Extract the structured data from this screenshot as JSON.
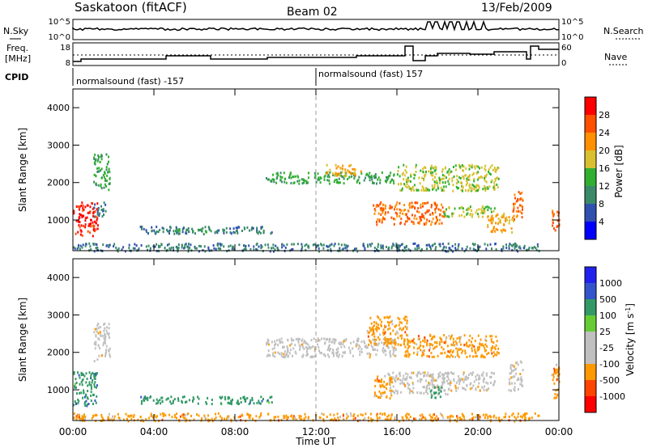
{
  "header": {
    "station": "Saskatoon (fitACF)",
    "beam": "Beam 02",
    "date": "13/Feb/2009"
  },
  "side_labels": {
    "nsky": "N.Sky",
    "freq": "Freq.",
    "freq_unit": "[MHz]",
    "cpid": "CPID",
    "nsearch": "N.Search",
    "nave": "Nave"
  },
  "cpid_labels": [
    "normalsound (fast) -157",
    "normalsound (fast) 157"
  ],
  "top_panel": {
    "left_ticks": [
      "10^5",
      "10^0"
    ],
    "right_ticks": [
      "10^5",
      "10^0"
    ]
  },
  "freq_panel": {
    "left_ticks": [
      "18",
      "8"
    ],
    "right_ticks": [
      "60",
      "0"
    ]
  },
  "time_axis": {
    "label": "Time UT",
    "ticks": [
      "00:00",
      "04:00",
      "08:00",
      "12:00",
      "16:00",
      "20:00",
      "00:00"
    ]
  },
  "colors": {
    "power": [
      "#0000ff",
      "#3050b0",
      "#3a8a6a",
      "#30b030",
      "#d8c030",
      "#ff9000",
      "#ff5000",
      "#ff0000"
    ],
    "velocity": [
      "#ff0000",
      "#ff4400",
      "#ff9900",
      "#c0c0c0",
      "#c0c0c0",
      "#66cc33",
      "#339966",
      "#3355cc",
      "#2222ee"
    ]
  },
  "chart_data": [
    {
      "type": "heatmap",
      "name": "power",
      "ylabel": "Slant Range [km]",
      "yticks": [
        "1000",
        "2000",
        "3000",
        "4000"
      ],
      "ylim": [
        180,
        4500
      ],
      "xlim": [
        0,
        24
      ],
      "colorbar": {
        "label": "Power [dB]",
        "ticks": [
          "4",
          "8",
          "12",
          "16",
          "20",
          "24",
          "28"
        ],
        "range": [
          0,
          32
        ]
      },
      "regions": [
        {
          "t": [
            0.0,
            1.2
          ],
          "r": [
            600,
            1500
          ],
          "v": 28
        },
        {
          "t": [
            1.0,
            1.8
          ],
          "r": [
            1800,
            2800
          ],
          "v": 14
        },
        {
          "t": [
            1.0,
            1.6
          ],
          "r": [
            1100,
            1500
          ],
          "v": 10
        },
        {
          "t": [
            3.3,
            9.8
          ],
          "r": [
            650,
            850
          ],
          "v": 8
        },
        {
          "t": [
            5.0,
            7.0
          ],
          "r": [
            700,
            800
          ],
          "v": 12
        },
        {
          "t": [
            9.5,
            16.0
          ],
          "r": [
            2000,
            2300
          ],
          "v": 14
        },
        {
          "t": [
            12.5,
            14.2
          ],
          "r": [
            2200,
            2500
          ],
          "v": 20
        },
        {
          "t": [
            14.8,
            18.3
          ],
          "r": [
            900,
            1500
          ],
          "v": 26
        },
        {
          "t": [
            16.0,
            21.0
          ],
          "r": [
            1800,
            2500
          ],
          "v": 16
        },
        {
          "t": [
            18.3,
            20.8
          ],
          "r": [
            1100,
            1400
          ],
          "v": 18
        },
        {
          "t": [
            20.4,
            21.8
          ],
          "r": [
            700,
            1200
          ],
          "v": 22
        },
        {
          "t": [
            21.7,
            22.2
          ],
          "r": [
            1000,
            1800
          ],
          "v": 26
        },
        {
          "t": [
            23.6,
            24.0
          ],
          "r": [
            700,
            1300
          ],
          "v": 26
        },
        {
          "t": [
            0.0,
            23.0
          ],
          "r": [
            190,
            400
          ],
          "v": 10
        }
      ]
    },
    {
      "type": "heatmap",
      "name": "velocity",
      "ylabel": "Slant Range [km]",
      "yticks": [
        "1000",
        "2000",
        "3000",
        "4000"
      ],
      "ylim": [
        180,
        4500
      ],
      "xlim": [
        0,
        24
      ],
      "colorbar": {
        "label": "Velocity [m s^-1]",
        "ticks": [
          "1000",
          "500",
          "100",
          "25",
          "-25",
          "-100",
          "-500",
          "-1000"
        ]
      },
      "regions": [
        {
          "t": [
            0.0,
            1.2
          ],
          "r": [
            600,
            1500
          ],
          "v": 150
        },
        {
          "t": [
            1.0,
            1.8
          ],
          "r": [
            1800,
            2800
          ],
          "v": 0
        },
        {
          "t": [
            3.3,
            9.8
          ],
          "r": [
            650,
            850
          ],
          "v": 150
        },
        {
          "t": [
            9.5,
            16.0
          ],
          "r": [
            1900,
            2400
          ],
          "v": 0
        },
        {
          "t": [
            14.8,
            15.8
          ],
          "r": [
            800,
            1400
          ],
          "v": -150
        },
        {
          "t": [
            15.5,
            18.5
          ],
          "r": [
            900,
            1500
          ],
          "v": 0
        },
        {
          "t": [
            14.5,
            16.5
          ],
          "r": [
            2200,
            3000
          ],
          "v": -150
        },
        {
          "t": [
            16.3,
            21.0
          ],
          "r": [
            1900,
            2500
          ],
          "v": -200
        },
        {
          "t": [
            17.5,
            18.2
          ],
          "r": [
            800,
            1100
          ],
          "v": 150
        },
        {
          "t": [
            18.2,
            20.8
          ],
          "r": [
            1000,
            1500
          ],
          "v": 0
        },
        {
          "t": [
            21.5,
            22.2
          ],
          "r": [
            1000,
            1800
          ],
          "v": 0
        },
        {
          "t": [
            23.6,
            24.0
          ],
          "r": [
            800,
            1700
          ],
          "v": -150
        },
        {
          "t": [
            0.0,
            23.0
          ],
          "r": [
            190,
            400
          ],
          "v": -150
        }
      ]
    }
  ]
}
